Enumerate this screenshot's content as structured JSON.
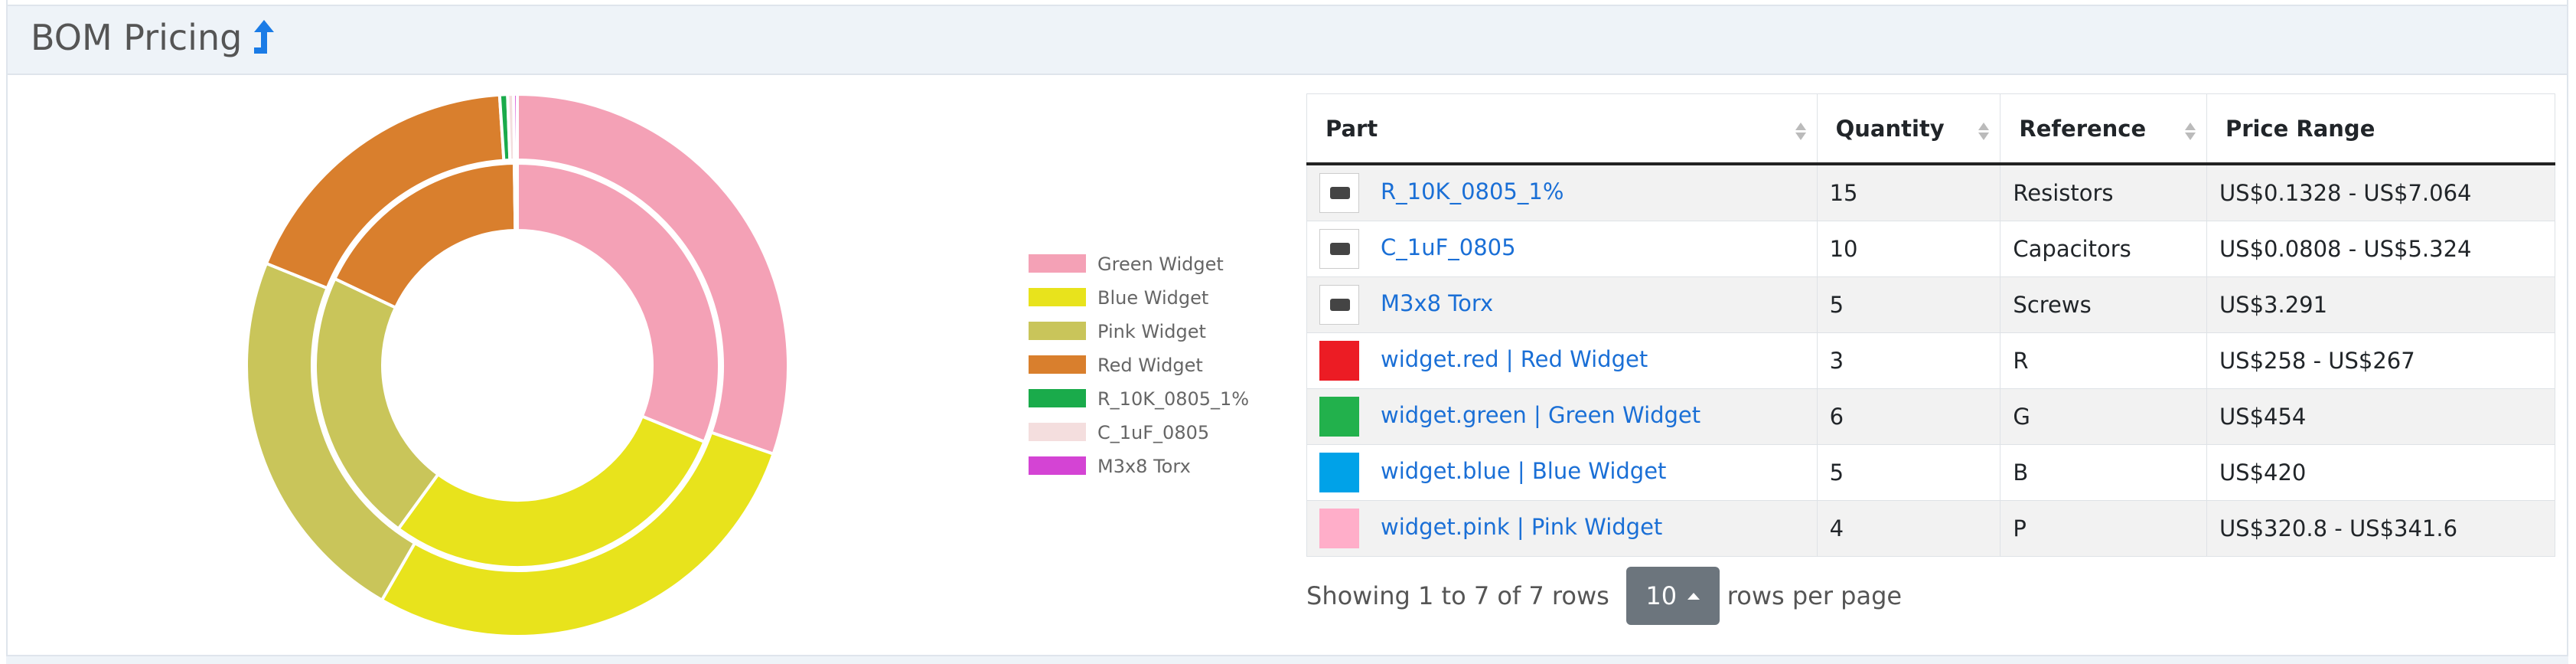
{
  "header": {
    "title": "BOM Pricing"
  },
  "chart_data": {
    "type": "doughnut",
    "categories": [
      "Green Widget",
      "Blue Widget",
      "Pink Widget",
      "Red Widget",
      "R_10K_0805_1%",
      "C_1uF_0805",
      "M3x8 Torx"
    ],
    "colors": [
      "#f4a1b6",
      "#e8e31c",
      "#c9c55a",
      "#d97f2d",
      "#1aab4b",
      "#f4dede",
      "#d444d4"
    ],
    "series": [
      {
        "values": [
          454,
          420,
          320.8,
          258,
          0.1328,
          0.0808,
          3.291
        ]
      },
      {
        "values": [
          454,
          420,
          341.6,
          267,
          7.064,
          5.324,
          3.291
        ]
      }
    ],
    "legend": "right"
  },
  "table": {
    "columns": [
      "Part",
      "Quantity",
      "Reference",
      "Price Range"
    ],
    "rows": [
      [
        "R_10K_0805_1%",
        15,
        "Resistors",
        "US$0.1328 - US$7.064"
      ],
      [
        "C_1uF_0805",
        10,
        "Capacitors",
        "US$0.0808 - US$5.324"
      ],
      [
        "M3x8 Torx",
        5,
        "Screws",
        "US$3.291"
      ],
      [
        "widget.red | Red Widget",
        3,
        "R",
        "US$258 - US$267"
      ],
      [
        "widget.green | Green Widget",
        6,
        "G",
        "US$454"
      ],
      [
        "widget.blue | Blue Widget",
        5,
        "B",
        "US$420"
      ],
      [
        "widget.pink | Pink Widget",
        4,
        "P",
        "US$320.8 - US$341.6"
      ]
    ]
  },
  "pagination": {
    "summary": "Showing 1 to 7 of 7 rows",
    "page_size": 10,
    "suffix": "rows per page"
  }
}
